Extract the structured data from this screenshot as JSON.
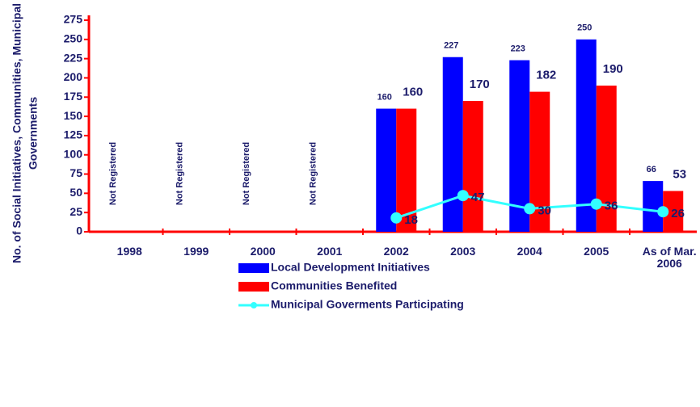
{
  "chart_data": {
    "type": "bar",
    "y_label": [
      "No. of Social Initiatives, Communities, Municipal",
      "Governments"
    ],
    "categories": [
      "1998",
      "1999",
      "2000",
      "2001",
      "2002",
      "2003",
      "2004",
      "2005",
      "As of Mar. 2006"
    ],
    "annotations": [
      "Not Registered",
      "Not Registered",
      "Not Registered",
      "Not Registered"
    ],
    "series": [
      {
        "name": "Local Development Initiatives",
        "type": "bar",
        "color": "#0000ff",
        "values": [
          null,
          null,
          null,
          null,
          160,
          227,
          223,
          250,
          66
        ]
      },
      {
        "name": "Communities Benefited",
        "type": "bar",
        "color": "#ff0000",
        "values": [
          null,
          null,
          null,
          null,
          160,
          170,
          182,
          190,
          53
        ]
      },
      {
        "name": "Municipal Goverments Participating",
        "type": "line",
        "color": "#33ffff",
        "values": [
          null,
          null,
          null,
          null,
          18,
          47,
          30,
          36,
          26
        ]
      }
    ],
    "ylim": [
      0,
      275
    ],
    "yticks": [
      0,
      25,
      50,
      75,
      100,
      125,
      150,
      175,
      200,
      225,
      250,
      275
    ],
    "grid": false,
    "legend": "bottom"
  }
}
